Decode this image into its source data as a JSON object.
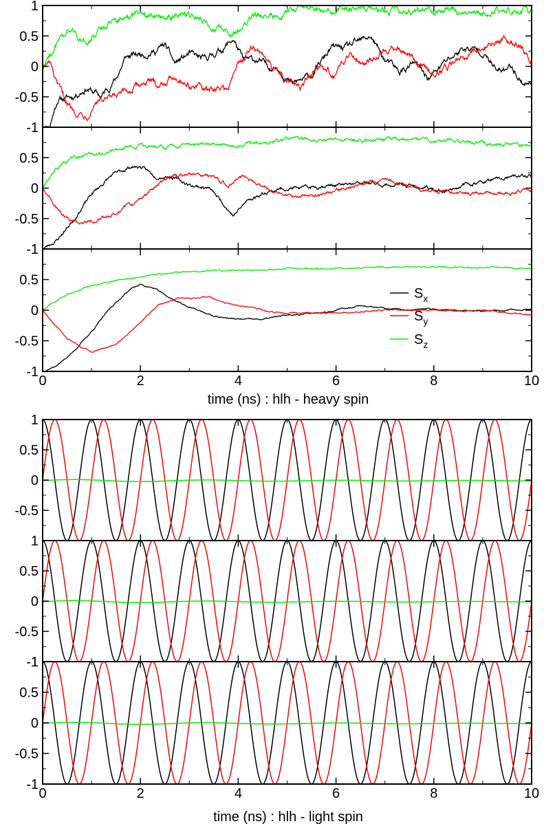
{
  "figure": {
    "top_xlabel": "time (ns) : hlh - heavy spin",
    "bottom_xlabel": "time (ns) : hlh - light spin"
  },
  "legend": {
    "entries": [
      {
        "main": "S",
        "sub": "x",
        "color": "#000000"
      },
      {
        "main": "S",
        "sub": "y",
        "color": "#ff0000"
      },
      {
        "main": "S",
        "sub": "z",
        "color": "#00ee00"
      }
    ]
  },
  "chart_data": [
    {
      "type": "line",
      "group": "heavy",
      "panel": 1,
      "xlim": [
        0,
        10
      ],
      "ylim": [
        -1,
        1
      ],
      "yticks": [
        -1,
        -0.5,
        0,
        0.5,
        1
      ],
      "ytick_labels": [
        "-1",
        "-0.5",
        "0",
        "0.5",
        "1"
      ],
      "noise": 0.035,
      "seed": 11,
      "series": [
        {
          "key": "Sx",
          "color": "#000000",
          "x": [
            0,
            0.15,
            0.3,
            0.6,
            0.9,
            1.2,
            1.5,
            1.7,
            2.0,
            2.3,
            2.5,
            2.7,
            3.0,
            3.3,
            3.7,
            3.9,
            4.1,
            4.4,
            4.6,
            4.8,
            5.1,
            5.5,
            5.9,
            6.2,
            6.5,
            6.7,
            7.0,
            7.3,
            7.6,
            7.9,
            8.2,
            8.6,
            9.0,
            9.3,
            9.6,
            9.8,
            10
          ],
          "values": [
            -1,
            -0.95,
            -0.55,
            -0.5,
            -0.35,
            -0.5,
            -0.2,
            0.15,
            0.2,
            0.25,
            0.35,
            0.05,
            0.2,
            0.1,
            0.3,
            0.45,
            0.1,
            0.1,
            0.0,
            0.0,
            -0.3,
            -0.15,
            0.3,
            0.3,
            0.4,
            0.5,
            0.1,
            -0.1,
            0.05,
            -0.2,
            0.05,
            0.3,
            0.25,
            -0.1,
            0.0,
            -0.25,
            -0.3
          ]
        },
        {
          "key": "Sy",
          "color": "#ff0000",
          "x": [
            0,
            0.15,
            0.3,
            0.6,
            0.9,
            1.1,
            1.4,
            1.8,
            2.1,
            2.4,
            2.7,
            3.0,
            3.4,
            3.8,
            4.0,
            4.3,
            4.6,
            4.8,
            5.0,
            5.3,
            5.6,
            6.0,
            6.3,
            6.6,
            7.0,
            7.3,
            7.7,
            8.0,
            8.3,
            8.6,
            9.0,
            9.4,
            9.8,
            10
          ],
          "values": [
            0,
            0.05,
            -0.35,
            -0.7,
            -0.8,
            -0.55,
            -0.55,
            -0.4,
            -0.25,
            -0.3,
            -0.15,
            -0.3,
            -0.4,
            -0.35,
            0.05,
            0.3,
            0.15,
            -0.1,
            -0.25,
            -0.35,
            0.0,
            -0.15,
            0.25,
            0.05,
            0.3,
            0.3,
            0.0,
            -0.1,
            0.0,
            0.2,
            0.3,
            0.45,
            0.35,
            0.05
          ]
        },
        {
          "key": "Sz",
          "color": "#00ee00",
          "x": [
            0,
            0.2,
            0.4,
            0.6,
            0.9,
            1.1,
            1.4,
            1.8,
            2.2,
            2.6,
            2.9,
            3.3,
            3.6,
            3.8,
            4.0,
            4.3,
            4.7,
            5.0,
            5.5,
            6.0,
            6.5,
            7.0,
            7.5,
            8.0,
            8.5,
            9.0,
            9.5,
            10
          ],
          "values": [
            0,
            0.25,
            0.45,
            0.6,
            0.35,
            0.55,
            0.75,
            0.85,
            0.88,
            0.82,
            0.88,
            0.75,
            0.6,
            0.58,
            0.6,
            0.82,
            0.85,
            0.9,
            0.95,
            0.92,
            0.95,
            0.93,
            0.9,
            0.95,
            0.9,
            0.9,
            0.88,
            0.92
          ]
        }
      ]
    },
    {
      "type": "line",
      "group": "heavy",
      "panel": 2,
      "xlim": [
        0,
        10
      ],
      "ylim": [
        -1,
        1
      ],
      "yticks": [
        -1,
        -0.5,
        0,
        0.5,
        1
      ],
      "ytick_labels": [
        "-1",
        "-0.5",
        "0",
        "0.5",
        ""
      ],
      "noise": 0.018,
      "seed": 23,
      "series": [
        {
          "key": "Sx",
          "color": "#000000",
          "x": [
            0,
            0.3,
            0.6,
            1.0,
            1.4,
            1.8,
            2.0,
            2.3,
            2.6,
            3.0,
            3.4,
            3.7,
            3.9,
            4.2,
            4.6,
            5.0,
            5.4,
            5.8,
            6.2,
            6.6,
            7.0,
            7.4,
            7.8,
            8.2,
            8.6,
            9.0,
            9.4,
            9.8,
            10
          ],
          "values": [
            -1,
            -0.85,
            -0.55,
            -0.1,
            0.2,
            0.35,
            0.35,
            0.2,
            0.2,
            0.05,
            0.0,
            -0.25,
            -0.45,
            -0.2,
            -0.05,
            0.0,
            0.0,
            0.05,
            0.05,
            0.08,
            0.05,
            0.05,
            0.0,
            -0.05,
            0.05,
            0.1,
            0.15,
            0.2,
            0.2
          ]
        },
        {
          "key": "Sy",
          "color": "#ff0000",
          "x": [
            0,
            0.2,
            0.4,
            0.7,
            0.9,
            1.2,
            1.6,
            2.0,
            2.4,
            2.7,
            3.0,
            3.4,
            3.8,
            4.1,
            4.4,
            4.8,
            5.2,
            5.6,
            6.0,
            6.4,
            6.8,
            7.1,
            7.4,
            7.8,
            8.2,
            8.6,
            9.0,
            9.4,
            9.8,
            10
          ],
          "values": [
            0,
            -0.2,
            -0.45,
            -0.55,
            -0.58,
            -0.5,
            -0.35,
            -0.2,
            0.1,
            0.2,
            0.22,
            0.2,
            0.05,
            0.2,
            0.05,
            -0.1,
            -0.15,
            -0.1,
            -0.05,
            0.05,
            0.1,
            0.15,
            0.05,
            -0.05,
            -0.05,
            -0.1,
            -0.08,
            -0.1,
            -0.05,
            -0.05
          ]
        },
        {
          "key": "Sz",
          "color": "#00ee00",
          "x": [
            0,
            0.3,
            0.6,
            1.0,
            1.5,
            2.0,
            2.5,
            3.0,
            3.5,
            4.0,
            4.5,
            5.0,
            5.5,
            6.0,
            6.5,
            7.0,
            7.5,
            8.0,
            8.5,
            9.0,
            9.5,
            10
          ],
          "values": [
            0,
            0.35,
            0.5,
            0.55,
            0.65,
            0.7,
            0.68,
            0.72,
            0.72,
            0.72,
            0.75,
            0.8,
            0.8,
            0.82,
            0.78,
            0.8,
            0.8,
            0.78,
            0.78,
            0.75,
            0.72,
            0.68
          ]
        }
      ]
    },
    {
      "type": "line",
      "group": "heavy",
      "panel": 3,
      "xlim": [
        0,
        10
      ],
      "ylim": [
        -1,
        1
      ],
      "yticks": [
        -1,
        -0.5,
        0,
        0.5,
        1
      ],
      "ytick_labels": [
        "-1",
        "-0.5",
        "0",
        "0.5",
        ""
      ],
      "noise": 0.007,
      "seed": 37,
      "series": [
        {
          "key": "Sx",
          "color": "#000000",
          "x": [
            0,
            0.3,
            0.6,
            1.0,
            1.4,
            1.8,
            2.0,
            2.3,
            2.6,
            3.0,
            3.5,
            4.0,
            4.5,
            5.0,
            5.5,
            6.0,
            6.5,
            7.0,
            7.5,
            8.0,
            8.5,
            9.0,
            9.5,
            10
          ],
          "values": [
            -1,
            -0.9,
            -0.7,
            -0.35,
            0.05,
            0.35,
            0.42,
            0.35,
            0.2,
            0.05,
            -0.1,
            -0.15,
            -0.15,
            -0.08,
            -0.05,
            0.0,
            0.08,
            0.02,
            0.0,
            0.02,
            0.0,
            -0.02,
            0.0,
            0.02
          ]
        },
        {
          "key": "Sy",
          "color": "#ff0000",
          "x": [
            0,
            0.2,
            0.5,
            0.8,
            1.0,
            1.3,
            1.6,
            2.0,
            2.4,
            2.8,
            3.0,
            3.4,
            3.8,
            4.2,
            4.6,
            5.0,
            5.5,
            6.0,
            6.5,
            7.0,
            7.5,
            8.0,
            8.5,
            9.0,
            9.5,
            10
          ],
          "values": [
            0,
            -0.2,
            -0.45,
            -0.62,
            -0.68,
            -0.62,
            -0.5,
            -0.2,
            0.1,
            0.2,
            0.18,
            0.22,
            0.1,
            0.05,
            -0.02,
            -0.05,
            -0.05,
            -0.05,
            -0.02,
            0.0,
            0.0,
            0.0,
            -0.02,
            0.0,
            -0.05,
            -0.08
          ]
        },
        {
          "key": "Sz",
          "color": "#00ee00",
          "x": [
            0,
            0.2,
            0.5,
            1.0,
            1.5,
            2.0,
            2.5,
            3.0,
            3.5,
            4.0,
            5.0,
            6.0,
            7.0,
            8.0,
            9.0,
            10
          ],
          "values": [
            0,
            0.12,
            0.25,
            0.4,
            0.48,
            0.55,
            0.6,
            0.63,
            0.65,
            0.65,
            0.68,
            0.68,
            0.7,
            0.7,
            0.7,
            0.68
          ]
        }
      ],
      "legend": true
    },
    {
      "type": "line",
      "group": "light",
      "panel": 1,
      "xlim": [
        0,
        10
      ],
      "ylim": [
        -1,
        1
      ],
      "yticks": [
        -1,
        -0.5,
        0,
        0.5,
        1
      ],
      "ytick_labels": [
        "",
        "-0.5",
        "0",
        "0.5",
        "1"
      ],
      "oscillation": {
        "period": 1.0,
        "sz_amplitude": 0.02,
        "sz_offset": -0.01
      }
    },
    {
      "type": "line",
      "group": "light",
      "panel": 2,
      "xlim": [
        0,
        10
      ],
      "ylim": [
        -1,
        1
      ],
      "yticks": [
        -1,
        -0.5,
        0,
        0.5,
        1
      ],
      "ytick_labels": [
        "-1",
        "-0.5",
        "0",
        "0.5",
        "1"
      ],
      "oscillation": {
        "period": 1.0,
        "sz_amplitude": 0.02,
        "sz_offset": -0.01
      }
    },
    {
      "type": "line",
      "group": "light",
      "panel": 3,
      "xlim": [
        0,
        10
      ],
      "ylim": [
        -1,
        1
      ],
      "yticks": [
        -1,
        -0.5,
        0,
        0.5,
        1
      ],
      "ytick_labels": [
        "-1",
        "-0.5",
        "0",
        "0.5",
        "1"
      ],
      "oscillation": {
        "period": 1.0,
        "sz_amplitude": 0.02,
        "sz_offset": -0.01
      }
    }
  ],
  "xaxis": {
    "ticks": [
      0,
      2,
      4,
      6,
      8,
      10
    ],
    "tick_labels": [
      "0",
      "2",
      "4",
      "6",
      "8",
      "10"
    ]
  }
}
